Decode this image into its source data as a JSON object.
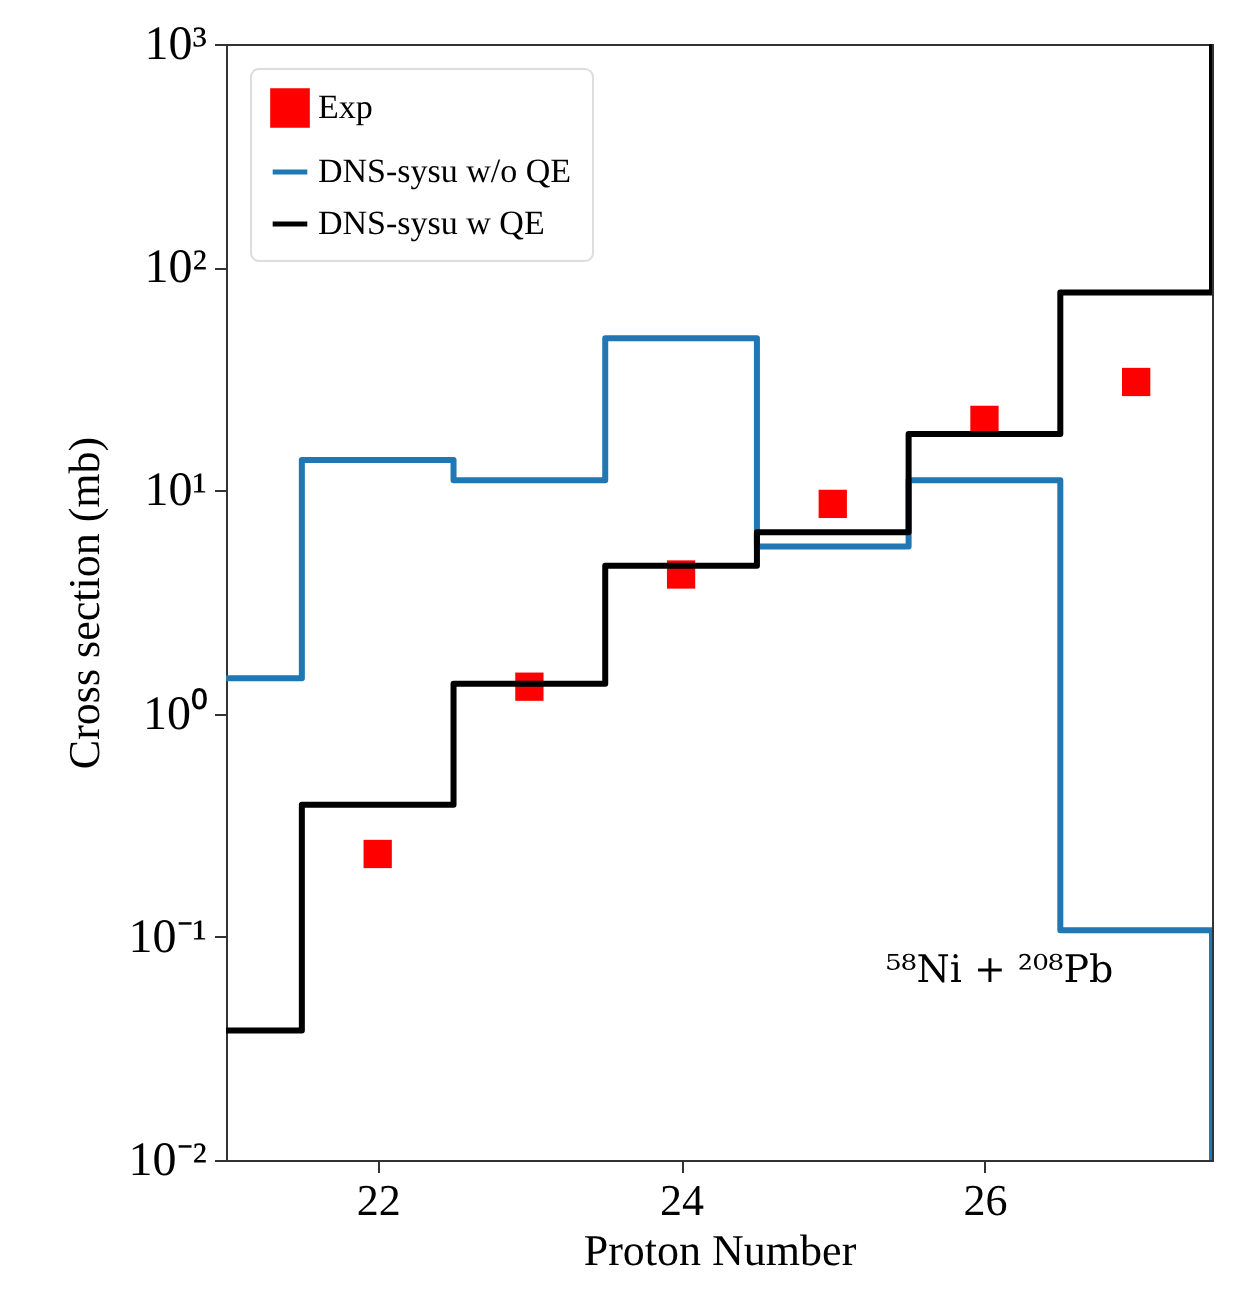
{
  "chart_data": {
    "type": "scatter",
    "xlabel": "Proton Number",
    "ylabel": "Cross section (mb)",
    "log": "y",
    "xlim": [
      21,
      27.5
    ],
    "xticks": [
      22,
      24,
      26
    ],
    "ylim": [
      0.01,
      1000
    ],
    "yticks": [
      {
        "value": 0.01,
        "label": "10⁻²"
      },
      {
        "value": 0.1,
        "label": "10⁻¹"
      },
      {
        "value": 1,
        "label": "10⁰"
      },
      {
        "value": 10,
        "label": "10¹"
      },
      {
        "value": 100,
        "label": "10²"
      },
      {
        "value": 1000,
        "label": "10³"
      }
    ],
    "legend": "top left",
    "grid": false,
    "annotations": [
      "⁵⁸Ni + ²⁰⁸Pb"
    ],
    "series": [
      {
        "name": "Exp",
        "marker": "square",
        "color": "#ff0000",
        "x": [
          22,
          23,
          24,
          25,
          26,
          27
        ],
        "values": [
          0.235,
          1.32,
          4.2,
          8.7,
          20.7,
          30.6
        ]
      },
      {
        "name": "DNS-sysu w/o QE",
        "type": "step",
        "color": "#1f77b4",
        "x": [
          21,
          21.5,
          22.5,
          23.5,
          24.5,
          25.5,
          26.5,
          27.5
        ],
        "values": [
          1.44,
          13.7,
          11.1,
          48,
          5.6,
          11.1,
          0.107,
          0.01
        ]
      },
      {
        "name": "DNS-sysu w QE",
        "type": "step",
        "color": "#000000",
        "x": [
          21,
          21.5,
          22.5,
          23.5,
          24.5,
          25.5,
          26.5,
          27.5
        ],
        "values": [
          0.038,
          0.39,
          1.36,
          4.6,
          6.5,
          17.9,
          77,
          1000
        ]
      }
    ]
  }
}
